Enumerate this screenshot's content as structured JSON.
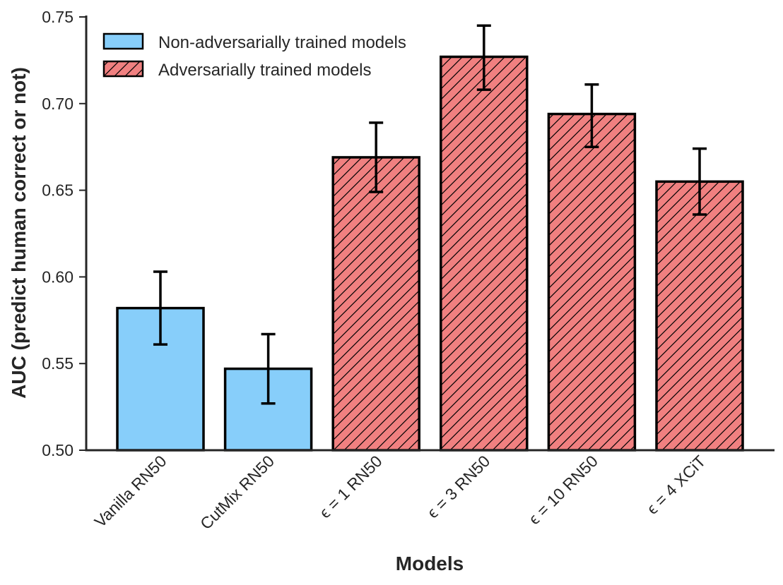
{
  "chart_data": {
    "type": "bar",
    "title": "",
    "xlabel": "Models",
    "ylabel": "AUC (predict human correct or not)",
    "ylim": [
      0.5,
      0.75
    ],
    "yticks": [
      "0.50",
      "0.55",
      "0.60",
      "0.65",
      "0.70",
      "0.75"
    ],
    "grid": false,
    "legend_position": "top-left",
    "categories": [
      "Vanilla RN50",
      "CutMix RN50",
      "ϵ = 1 RN50",
      "ϵ = 3 RN50",
      "ϵ = 10 RN50",
      "ϵ = 4 XCiT"
    ],
    "values": [
      0.582,
      0.547,
      0.669,
      0.727,
      0.694,
      0.655
    ],
    "error_low": [
      0.561,
      0.527,
      0.649,
      0.708,
      0.675,
      0.636
    ],
    "error_high": [
      0.603,
      0.567,
      0.689,
      0.745,
      0.711,
      0.674
    ],
    "groups": [
      0,
      0,
      1,
      1,
      1,
      1
    ],
    "series": [
      {
        "name": "Non-adversarially trained models",
        "color": "#87cefa",
        "hatched": false
      },
      {
        "name": "Adversarially trained models",
        "color": "#f08080",
        "hatched": true
      }
    ]
  }
}
